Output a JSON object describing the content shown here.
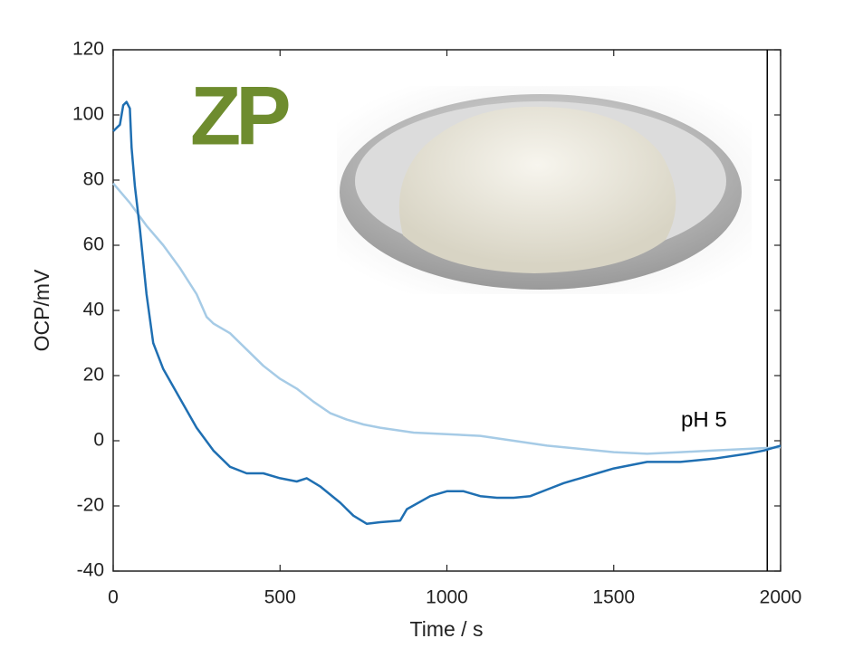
{
  "chart_data": {
    "type": "line",
    "xlabel": "Time / s",
    "ylabel": "OCP/mV",
    "annotation": "pH 5",
    "logo": "ZP",
    "xlim": [
      0,
      2000
    ],
    "ylim": [
      -40,
      120
    ],
    "xticks": [
      0,
      500,
      1000,
      1500,
      2000
    ],
    "yticks": [
      -40,
      -20,
      0,
      20,
      40,
      60,
      80,
      100,
      120
    ],
    "vline": 1960,
    "grid": false,
    "series": [
      {
        "color": "#1f6fb2",
        "x": [
          0,
          20,
          30,
          40,
          50,
          55,
          65,
          80,
          100,
          120,
          150,
          200,
          250,
          300,
          350,
          400,
          450,
          500,
          550,
          580,
          620,
          680,
          720,
          760,
          800,
          860,
          880,
          950,
          1000,
          1050,
          1100,
          1150,
          1200,
          1250,
          1300,
          1350,
          1400,
          1450,
          1500,
          1550,
          1600,
          1700,
          1800,
          1900,
          1950,
          2000
        ],
        "values": [
          95,
          97,
          103,
          104,
          102,
          90,
          78,
          65,
          45,
          30,
          22,
          13,
          4,
          -3,
          -8,
          -10,
          -10,
          -11.5,
          -12.5,
          -11.5,
          -14,
          -19,
          -23,
          -25.5,
          -25,
          -24.5,
          -21,
          -17,
          -15.5,
          -15.5,
          -17,
          -17.5,
          -17.5,
          -17,
          -15,
          -13,
          -11.5,
          -10,
          -8.5,
          -7.5,
          -6.5,
          -6.5,
          -5.5,
          -4,
          -3,
          -1.5
        ]
      },
      {
        "color": "#a6cbe6",
        "x": [
          0,
          50,
          100,
          150,
          200,
          250,
          280,
          300,
          350,
          400,
          450,
          500,
          550,
          600,
          650,
          700,
          750,
          800,
          900,
          1000,
          1100,
          1200,
          1300,
          1400,
          1500,
          1600,
          1700,
          1800,
          1900,
          2000
        ],
        "values": [
          79,
          73,
          66,
          60,
          53,
          45,
          38,
          36,
          33,
          28,
          23,
          19,
          16,
          12,
          8.5,
          6.5,
          5,
          4,
          2.5,
          2,
          1.5,
          0,
          -1.5,
          -2.5,
          -3.5,
          -4,
          -3.5,
          -3,
          -2.5,
          -2
        ]
      }
    ]
  }
}
